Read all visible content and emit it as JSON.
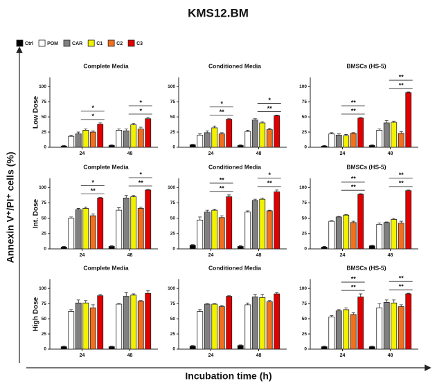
{
  "title": "KMS12.BM",
  "y_label": "Annexin V⁺/PI⁺ cells (%)",
  "x_label": "Incubation time (h)",
  "rows": [
    "Low Dose",
    "Int. Dose",
    "High Dose"
  ],
  "chart_data": [
    {
      "type": "bar",
      "title": "Complete Media",
      "categories": [
        "24",
        "48"
      ],
      "ylim": [
        0,
        115
      ],
      "yticks": [
        0,
        25,
        50,
        75,
        100
      ],
      "series": [
        {
          "name": "Ctrl",
          "color": "#000000",
          "values": [
            2,
            3
          ],
          "errors": [
            1,
            1
          ]
        },
        {
          "name": "POM",
          "color": "#ffffff",
          "values": [
            18,
            28
          ],
          "errors": [
            2,
            2
          ]
        },
        {
          "name": "CAR",
          "color": "#808080",
          "values": [
            22,
            27
          ],
          "errors": [
            3,
            3
          ]
        },
        {
          "name": "C1",
          "color": "#f2f200",
          "values": [
            28,
            37
          ],
          "errors": [
            2,
            2
          ]
        },
        {
          "name": "C2",
          "color": "#f07020",
          "values": [
            25,
            30
          ],
          "errors": [
            2,
            3
          ]
        },
        {
          "name": "C3",
          "color": "#e00000",
          "values": [
            38,
            47
          ],
          "errors": [
            2,
            2
          ]
        }
      ],
      "significance": [
        [
          "*",
          "*"
        ],
        [
          "*",
          "*"
        ]
      ]
    },
    {
      "type": "bar",
      "title": "Conditioned Media",
      "categories": [
        "24",
        "48"
      ],
      "ylim": [
        0,
        115
      ],
      "yticks": [
        0,
        25,
        50,
        75,
        100
      ],
      "series": [
        {
          "name": "Ctrl",
          "color": "#000000",
          "values": [
            4,
            3
          ],
          "errors": [
            1,
            1
          ]
        },
        {
          "name": "POM",
          "color": "#ffffff",
          "values": [
            20,
            26
          ],
          "errors": [
            2,
            2
          ]
        },
        {
          "name": "CAR",
          "color": "#808080",
          "values": [
            24,
            45
          ],
          "errors": [
            3,
            2
          ]
        },
        {
          "name": "C1",
          "color": "#f2f200",
          "values": [
            32,
            40
          ],
          "errors": [
            3,
            2
          ]
        },
        {
          "name": "C2",
          "color": "#f07020",
          "values": [
            22,
            29
          ],
          "errors": [
            2,
            2
          ]
        },
        {
          "name": "C3",
          "color": "#e00000",
          "values": [
            46,
            52
          ],
          "errors": [
            1,
            1
          ]
        }
      ],
      "significance": [
        [
          "*",
          "**"
        ],
        [
          "*",
          "**"
        ]
      ]
    },
    {
      "type": "bar",
      "title": "BMSCs (HS-5)",
      "categories": [
        "24",
        "48"
      ],
      "ylim": [
        0,
        115
      ],
      "yticks": [
        0,
        25,
        50,
        75,
        100
      ],
      "series": [
        {
          "name": "Ctrl",
          "color": "#000000",
          "values": [
            2,
            3
          ],
          "errors": [
            1,
            1
          ]
        },
        {
          "name": "POM",
          "color": "#ffffff",
          "values": [
            22,
            28
          ],
          "errors": [
            2,
            2
          ]
        },
        {
          "name": "CAR",
          "color": "#808080",
          "values": [
            20,
            40
          ],
          "errors": [
            2,
            4
          ]
        },
        {
          "name": "C1",
          "color": "#f2f200",
          "values": [
            19,
            41
          ],
          "errors": [
            2,
            2
          ]
        },
        {
          "name": "C2",
          "color": "#f07020",
          "values": [
            23,
            23
          ],
          "errors": [
            1,
            3
          ]
        },
        {
          "name": "C3",
          "color": "#e00000",
          "values": [
            48,
            90
          ],
          "errors": [
            1,
            1
          ]
        }
      ],
      "significance": [
        [
          "**",
          "**"
        ],
        [
          "**",
          "**"
        ]
      ]
    },
    {
      "type": "bar",
      "title": "Complete Media",
      "categories": [
        "24",
        "48"
      ],
      "ylim": [
        0,
        115
      ],
      "yticks": [
        0,
        25,
        50,
        75,
        100
      ],
      "series": [
        {
          "name": "Ctrl",
          "color": "#000000",
          "values": [
            3,
            4
          ],
          "errors": [
            1,
            1
          ]
        },
        {
          "name": "POM",
          "color": "#ffffff",
          "values": [
            50,
            63
          ],
          "errors": [
            2,
            4
          ]
        },
        {
          "name": "CAR",
          "color": "#808080",
          "values": [
            64,
            83
          ],
          "errors": [
            2,
            4
          ]
        },
        {
          "name": "C1",
          "color": "#f2f200",
          "values": [
            66,
            85
          ],
          "errors": [
            2,
            2
          ]
        },
        {
          "name": "C2",
          "color": "#f07020",
          "values": [
            54,
            66
          ],
          "errors": [
            3,
            2
          ]
        },
        {
          "name": "C3",
          "color": "#e00000",
          "values": [
            83,
            96
          ],
          "errors": [
            1,
            1
          ]
        }
      ],
      "significance": [
        [
          "*",
          "**"
        ],
        [
          "*",
          "**"
        ]
      ]
    },
    {
      "type": "bar",
      "title": "Conditioned Media",
      "categories": [
        "24",
        "48"
      ],
      "ylim": [
        0,
        115
      ],
      "yticks": [
        0,
        25,
        50,
        75,
        100
      ],
      "series": [
        {
          "name": "Ctrl",
          "color": "#000000",
          "values": [
            6,
            4
          ],
          "errors": [
            1,
            1
          ]
        },
        {
          "name": "POM",
          "color": "#ffffff",
          "values": [
            47,
            60
          ],
          "errors": [
            5,
            2
          ]
        },
        {
          "name": "CAR",
          "color": "#808080",
          "values": [
            60,
            79
          ],
          "errors": [
            3,
            2
          ]
        },
        {
          "name": "C1",
          "color": "#f2f200",
          "values": [
            63,
            81
          ],
          "errors": [
            2,
            2
          ]
        },
        {
          "name": "C2",
          "color": "#f07020",
          "values": [
            51,
            62
          ],
          "errors": [
            3,
            1
          ]
        },
        {
          "name": "C3",
          "color": "#e00000",
          "values": [
            85,
            93
          ],
          "errors": [
            3,
            3
          ]
        }
      ],
      "significance": [
        [
          "**",
          "**"
        ],
        [
          "*",
          "**"
        ]
      ]
    },
    {
      "type": "bar",
      "title": "BMSCs (HS-5)",
      "categories": [
        "24",
        "48"
      ],
      "ylim": [
        0,
        115
      ],
      "yticks": [
        0,
        25,
        50,
        75,
        100
      ],
      "series": [
        {
          "name": "Ctrl",
          "color": "#000000",
          "values": [
            3,
            5
          ],
          "errors": [
            1,
            1
          ]
        },
        {
          "name": "POM",
          "color": "#ffffff",
          "values": [
            45,
            40
          ],
          "errors": [
            1,
            2
          ]
        },
        {
          "name": "CAR",
          "color": "#808080",
          "values": [
            52,
            43
          ],
          "errors": [
            1,
            1
          ]
        },
        {
          "name": "C1",
          "color": "#f2f200",
          "values": [
            55,
            48
          ],
          "errors": [
            1,
            2
          ]
        },
        {
          "name": "C2",
          "color": "#f07020",
          "values": [
            43,
            42
          ],
          "errors": [
            2,
            3
          ]
        },
        {
          "name": "C3",
          "color": "#e00000",
          "values": [
            89,
            95
          ],
          "errors": [
            1,
            1
          ]
        }
      ],
      "significance": [
        [
          "**",
          "**"
        ],
        [
          "**",
          "**"
        ]
      ]
    },
    {
      "type": "bar",
      "title": "Complete Media",
      "categories": [
        "24",
        "48"
      ],
      "ylim": [
        0,
        115
      ],
      "yticks": [
        0,
        25,
        50,
        75,
        100
      ],
      "series": [
        {
          "name": "Ctrl",
          "color": "#000000",
          "values": [
            4,
            4
          ],
          "errors": [
            1,
            1
          ]
        },
        {
          "name": "POM",
          "color": "#ffffff",
          "values": [
            62,
            74
          ],
          "errors": [
            3,
            1
          ]
        },
        {
          "name": "CAR",
          "color": "#808080",
          "values": [
            76,
            87
          ],
          "errors": [
            5,
            6
          ]
        },
        {
          "name": "C1",
          "color": "#f2f200",
          "values": [
            76,
            89
          ],
          "errors": [
            4,
            2
          ]
        },
        {
          "name": "C2",
          "color": "#f07020",
          "values": [
            68,
            79
          ],
          "errors": [
            5,
            1
          ]
        },
        {
          "name": "C3",
          "color": "#e00000",
          "values": [
            88,
            92
          ],
          "errors": [
            2,
            4
          ]
        }
      ],
      "significance": [
        [],
        []
      ]
    },
    {
      "type": "bar",
      "title": "Conditioned Media",
      "categories": [
        "24",
        "48"
      ],
      "ylim": [
        0,
        115
      ],
      "yticks": [
        0,
        25,
        50,
        75,
        100
      ],
      "series": [
        {
          "name": "Ctrl",
          "color": "#000000",
          "values": [
            5,
            6
          ],
          "errors": [
            1,
            1
          ]
        },
        {
          "name": "POM",
          "color": "#ffffff",
          "values": [
            62,
            73
          ],
          "errors": [
            3,
            3
          ]
        },
        {
          "name": "CAR",
          "color": "#808080",
          "values": [
            74,
            86
          ],
          "errors": [
            1,
            4
          ]
        },
        {
          "name": "C1",
          "color": "#f2f200",
          "values": [
            74,
            85
          ],
          "errors": [
            1,
            5
          ]
        },
        {
          "name": "C2",
          "color": "#f07020",
          "values": [
            70,
            78
          ],
          "errors": [
            2,
            2
          ]
        },
        {
          "name": "C3",
          "color": "#e00000",
          "values": [
            87,
            91
          ],
          "errors": [
            1,
            2
          ]
        }
      ],
      "significance": [
        [],
        []
      ]
    },
    {
      "type": "bar",
      "title": "BMSCs (HS-5)",
      "categories": [
        "24",
        "48"
      ],
      "ylim": [
        0,
        115
      ],
      "yticks": [
        0,
        25,
        50,
        75,
        100
      ],
      "series": [
        {
          "name": "Ctrl",
          "color": "#000000",
          "values": [
            4,
            4
          ],
          "errors": [
            1,
            1
          ]
        },
        {
          "name": "POM",
          "color": "#ffffff",
          "values": [
            53,
            68
          ],
          "errors": [
            2,
            7
          ]
        },
        {
          "name": "CAR",
          "color": "#808080",
          "values": [
            63,
            77
          ],
          "errors": [
            2,
            4
          ]
        },
        {
          "name": "C1",
          "color": "#f2f200",
          "values": [
            65,
            76
          ],
          "errors": [
            3,
            5
          ]
        },
        {
          "name": "C2",
          "color": "#f07020",
          "values": [
            57,
            70
          ],
          "errors": [
            3,
            3
          ]
        },
        {
          "name": "C3",
          "color": "#e00000",
          "values": [
            86,
            91
          ],
          "errors": [
            5,
            1
          ]
        }
      ],
      "significance": [
        [
          "**",
          "**"
        ],
        [
          "**",
          "**"
        ]
      ]
    }
  ]
}
